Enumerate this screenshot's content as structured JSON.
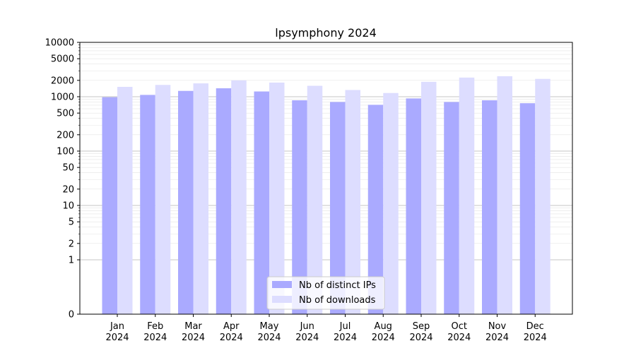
{
  "chart_data": {
    "type": "bar",
    "title": "lpsymphony 2024",
    "xlabel": "",
    "ylabel": "",
    "y_scale": "symlog",
    "ylim": [
      0,
      10000
    ],
    "y_ticks": [
      0,
      1,
      2,
      5,
      10,
      20,
      50,
      100,
      200,
      500,
      1000,
      2000,
      5000,
      10000
    ],
    "grid": "horizontal",
    "legend_position": "bottom-center",
    "categories": [
      "Jan\n2024",
      "Feb\n2024",
      "Mar\n2024",
      "Apr\n2024",
      "May\n2024",
      "Jun\n2024",
      "Jul\n2024",
      "Aug\n2024",
      "Sep\n2024",
      "Oct\n2024",
      "Nov\n2024",
      "Dec\n2024"
    ],
    "category_lines": [
      [
        "Jan",
        "2024"
      ],
      [
        "Feb",
        "2024"
      ],
      [
        "Mar",
        "2024"
      ],
      [
        "Apr",
        "2024"
      ],
      [
        "May",
        "2024"
      ],
      [
        "Jun",
        "2024"
      ],
      [
        "Jul",
        "2024"
      ],
      [
        "Aug",
        "2024"
      ],
      [
        "Sep",
        "2024"
      ],
      [
        "Oct",
        "2024"
      ],
      [
        "Nov",
        "2024"
      ],
      [
        "Dec",
        "2024"
      ]
    ],
    "series": [
      {
        "name": "Nb of distinct IPs",
        "color": "#aaaaff",
        "values": [
          980,
          1080,
          1280,
          1430,
          1250,
          860,
          800,
          710,
          930,
          800,
          860,
          760
        ]
      },
      {
        "name": "Nb of downloads",
        "color": "#ddddff",
        "values": [
          1520,
          1650,
          1760,
          2000,
          1820,
          1590,
          1330,
          1170,
          1880,
          2250,
          2380,
          2130
        ]
      }
    ]
  }
}
